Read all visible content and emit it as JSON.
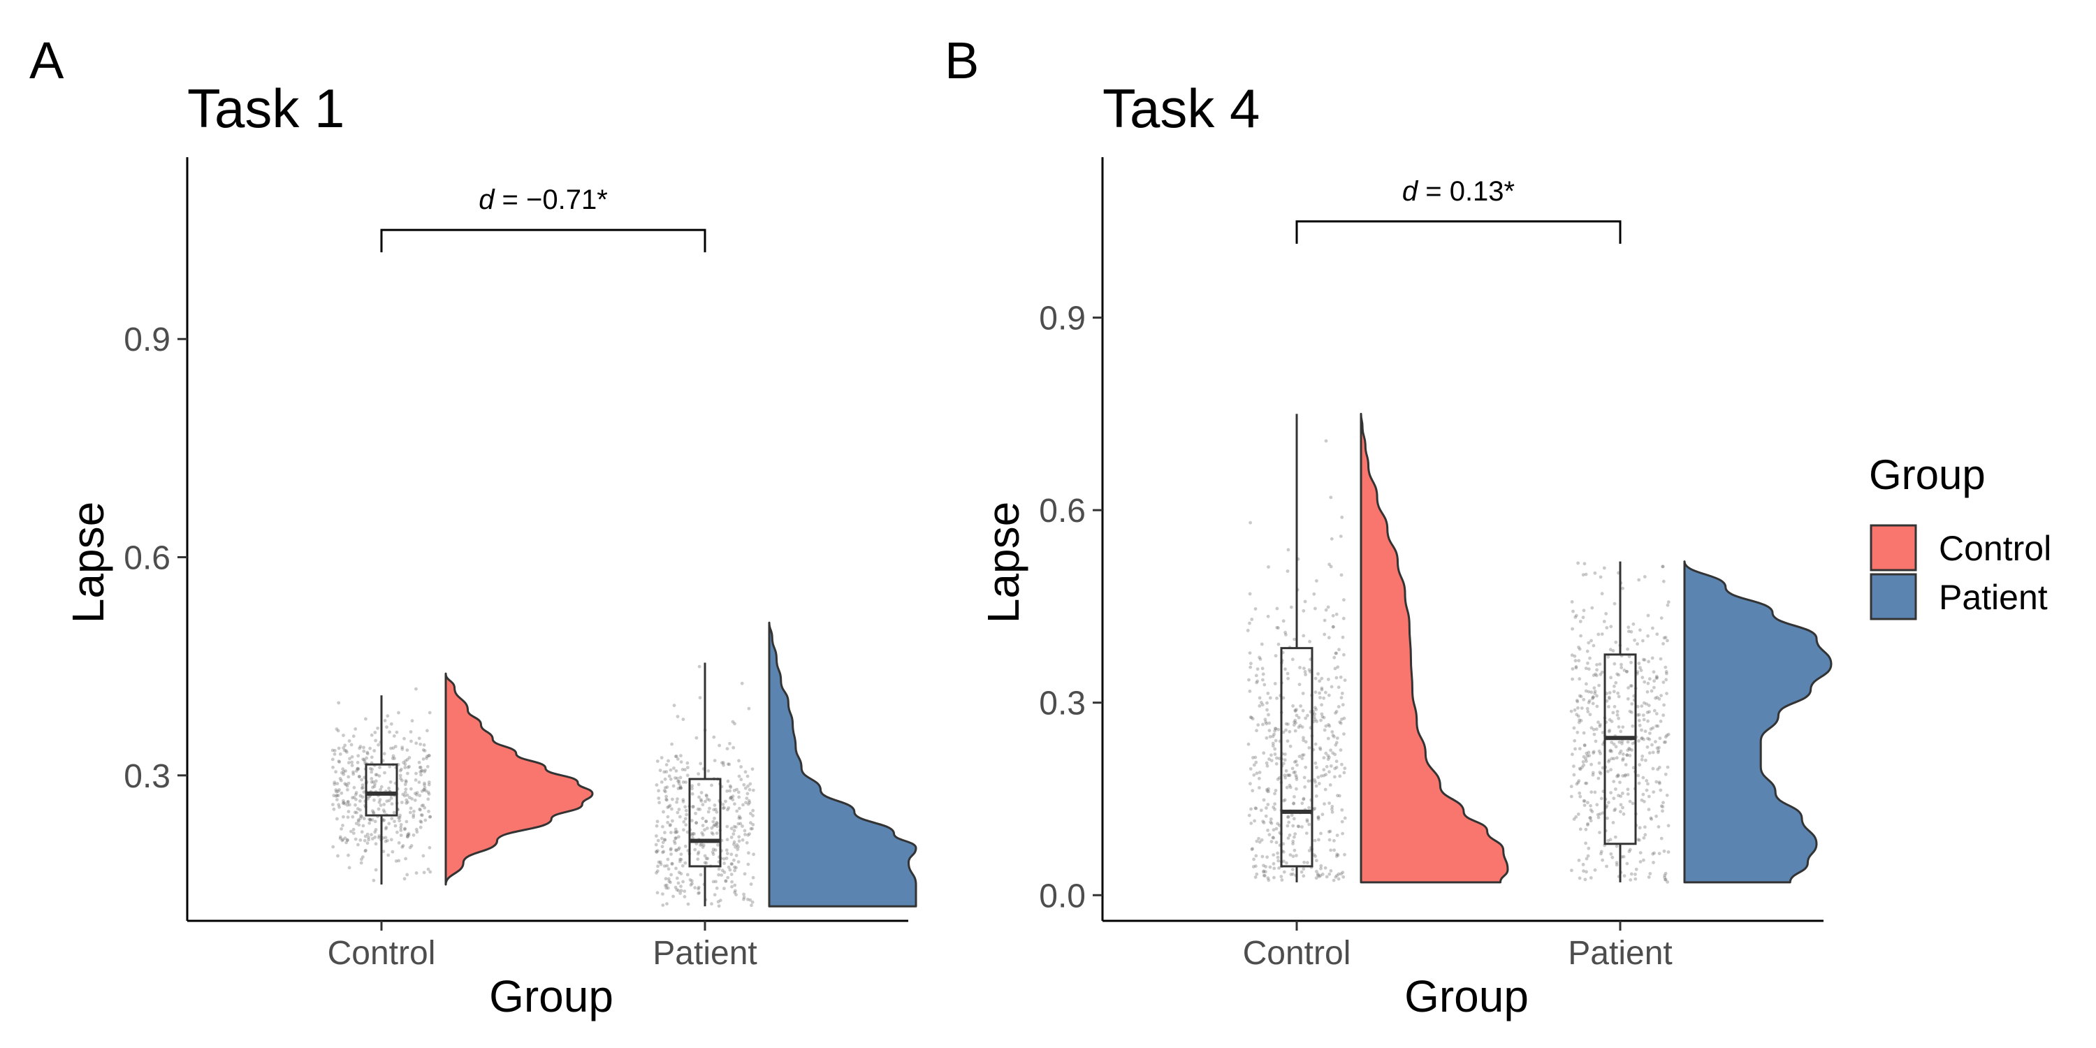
{
  "legend": {
    "title": "Group",
    "items": [
      {
        "label": "Control",
        "color": "#F8766D"
      },
      {
        "label": "Patient",
        "color": "#5B84B1"
      }
    ]
  },
  "chart_data": [
    {
      "panel": "A",
      "type": "raincloud",
      "title": "Task 1",
      "xlabel": "Group",
      "ylabel": "Lapse",
      "categories": [
        "Control",
        "Patient"
      ],
      "ylim": [
        0.1,
        1.15
      ],
      "yticks": [
        0.3,
        0.6,
        0.9
      ],
      "ytick_labels": [
        "0.3",
        "0.6",
        "0.9"
      ],
      "annotation": {
        "text_italic": "d",
        "text_rest": " = −0.71*",
        "between": [
          "Control",
          "Patient"
        ],
        "y": 1.05
      },
      "series": [
        {
          "name": "Control",
          "color": "#F8766D",
          "box": {
            "min": 0.15,
            "q1": 0.245,
            "median": 0.275,
            "q3": 0.315,
            "max": 0.41
          },
          "density": {
            "y": [
              0.15,
              0.18,
              0.21,
              0.24,
              0.26,
              0.275,
              0.29,
              0.31,
              0.33,
              0.35,
              0.37,
              0.39,
              0.42,
              0.44
            ],
            "d": [
              0.0,
              0.12,
              0.35,
              0.72,
              0.93,
              1.0,
              0.9,
              0.68,
              0.48,
              0.32,
              0.24,
              0.15,
              0.06,
              0.0
            ]
          },
          "points": {
            "n": 420,
            "center": 0.27,
            "sd": 0.05,
            "min": 0.15,
            "max": 0.44
          }
        },
        {
          "name": "Patient",
          "color": "#5B84B1",
          "box": {
            "min": 0.12,
            "q1": 0.175,
            "median": 0.21,
            "q3": 0.295,
            "max": 0.455
          },
          "density": {
            "y": [
              0.12,
              0.15,
              0.18,
              0.2,
              0.22,
              0.25,
              0.28,
              0.31,
              0.34,
              0.37,
              0.4,
              0.43,
              0.46,
              0.49,
              0.51
            ],
            "d": [
              1.0,
              1.0,
              0.95,
              1.0,
              0.85,
              0.58,
              0.35,
              0.22,
              0.18,
              0.16,
              0.13,
              0.08,
              0.05,
              0.02,
              0.0
            ]
          },
          "points": {
            "n": 420,
            "center": 0.22,
            "sd": 0.07,
            "min": 0.12,
            "max": 0.5
          }
        }
      ]
    },
    {
      "panel": "B",
      "type": "raincloud",
      "title": "Task 4",
      "xlabel": "Group",
      "ylabel": "Lapse",
      "categories": [
        "Control",
        "Patient"
      ],
      "ylim": [
        -0.04,
        1.15
      ],
      "yticks": [
        0.0,
        0.3,
        0.6,
        0.9
      ],
      "ytick_labels": [
        "0.0",
        "0.3",
        "0.6",
        "0.9"
      ],
      "annotation": {
        "text_italic": "d",
        "text_rest": " = 0.13*",
        "between": [
          "Control",
          "Patient"
        ],
        "y": 1.05
      },
      "series": [
        {
          "name": "Control",
          "color": "#F8766D",
          "box": {
            "min": 0.02,
            "q1": 0.045,
            "median": 0.13,
            "q3": 0.385,
            "max": 0.75
          },
          "density": {
            "y": [
              0.02,
              0.04,
              0.07,
              0.1,
              0.13,
              0.17,
              0.22,
              0.27,
              0.32,
              0.37,
              0.42,
              0.47,
              0.52,
              0.57,
              0.62,
              0.67,
              0.7,
              0.73,
              0.75
            ],
            "d": [
              0.95,
              1.0,
              0.97,
              0.86,
              0.7,
              0.54,
              0.44,
              0.38,
              0.35,
              0.34,
              0.33,
              0.3,
              0.25,
              0.18,
              0.11,
              0.05,
              0.03,
              0.01,
              0.0
            ]
          },
          "points": {
            "n": 500,
            "center": 0.12,
            "sd": 0.2,
            "min": 0.02,
            "max": 0.75
          }
        },
        {
          "name": "Patient",
          "color": "#5B84B1",
          "box": {
            "min": 0.02,
            "q1": 0.08,
            "median": 0.245,
            "q3": 0.375,
            "max": 0.52
          },
          "density": {
            "y": [
              0.02,
              0.05,
              0.08,
              0.12,
              0.16,
              0.2,
              0.24,
              0.28,
              0.32,
              0.36,
              0.4,
              0.44,
              0.48,
              0.52
            ],
            "d": [
              0.72,
              0.84,
              0.9,
              0.8,
              0.62,
              0.52,
              0.52,
              0.64,
              0.86,
              1.0,
              0.9,
              0.6,
              0.28,
              0.0
            ]
          },
          "points": {
            "n": 500,
            "center": 0.26,
            "sd": 0.15,
            "min": 0.02,
            "max": 0.52
          }
        }
      ]
    }
  ]
}
